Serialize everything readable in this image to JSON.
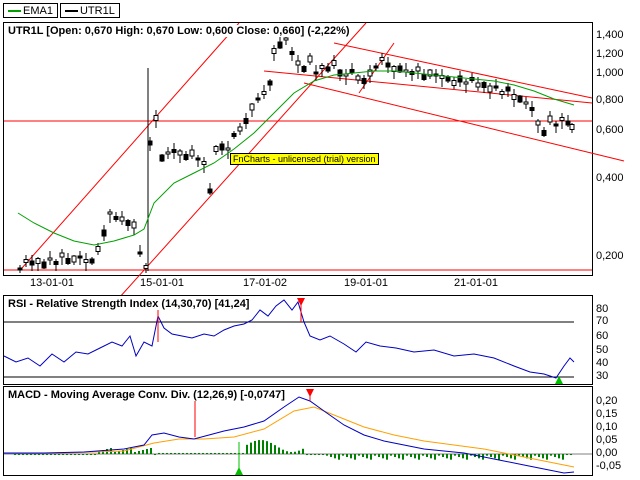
{
  "legend": {
    "items": [
      {
        "label": "EMA1",
        "color": "#00a000"
      },
      {
        "label": "UTR1L",
        "color": "#000000"
      }
    ]
  },
  "price_panel": {
    "title": "UTR1L [Open: 0,670  High: 0,670  Low: 0,600  Close: 0,660] (-2,22%)",
    "y_ticks": [
      "1,400",
      "1,200",
      "1,000",
      "0,800",
      "0,600",
      "0,400",
      "0,200"
    ],
    "x_ticks": [
      "13-01-01",
      "15-01-01",
      "17-01-02",
      "19-01-01",
      "21-01-01"
    ],
    "watermark": "FnCharts - unlicensed (trial) version"
  },
  "rsi_panel": {
    "title": "RSI - Relative Strength Index (14,30,70) [41,24]",
    "y_ticks": [
      "80",
      "70",
      "60",
      "50",
      "40",
      "30"
    ]
  },
  "macd_panel": {
    "title": "MACD - Moving Average Conv. Div. (12,26,9) [-0,0747]",
    "y_ticks": [
      "0,20",
      "0,15",
      "0,10",
      "0,05",
      "0,00",
      "-0,05"
    ]
  },
  "colors": {
    "ema": "#00a000",
    "trendline": "#ff0000",
    "rsi_line": "#0000c0",
    "macd_line": "#0000c0",
    "signal_line": "#ffa000",
    "histogram": "#008000"
  }
}
